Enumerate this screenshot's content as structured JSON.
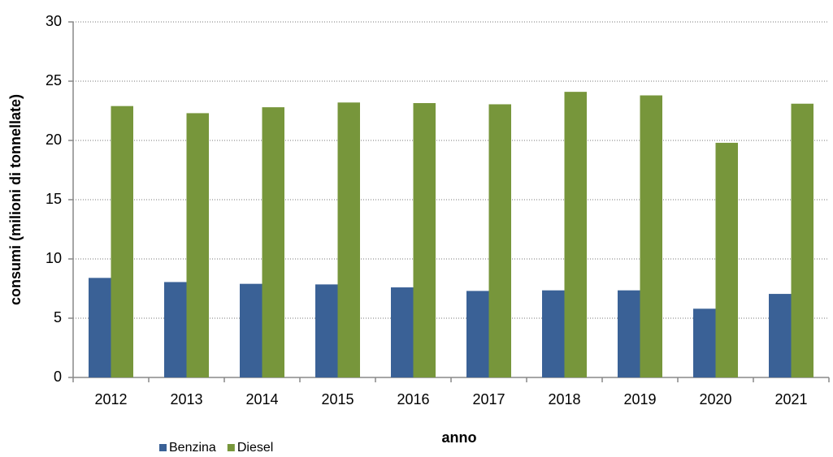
{
  "chart_data": {
    "type": "bar",
    "x_label": "anno",
    "y_label": "consumi (milioni di tonnellate)",
    "categories": [
      "2012",
      "2013",
      "2014",
      "2015",
      "2016",
      "2017",
      "2018",
      "2019",
      "2020",
      "2021"
    ],
    "series": [
      {
        "name": "Benzina",
        "color": "#3a6196",
        "values": [
          8.4,
          8.05,
          7.9,
          7.85,
          7.6,
          7.3,
          7.35,
          7.35,
          5.8,
          7.05
        ]
      },
      {
        "name": "Diesel",
        "color": "#77963b",
        "values": [
          22.9,
          22.3,
          22.8,
          23.2,
          23.15,
          23.05,
          24.1,
          23.8,
          19.8,
          23.1
        ]
      }
    ],
    "ylim": [
      0,
      30
    ],
    "yticks": [
      0,
      5,
      10,
      15,
      20,
      25,
      30
    ],
    "grid": true
  }
}
